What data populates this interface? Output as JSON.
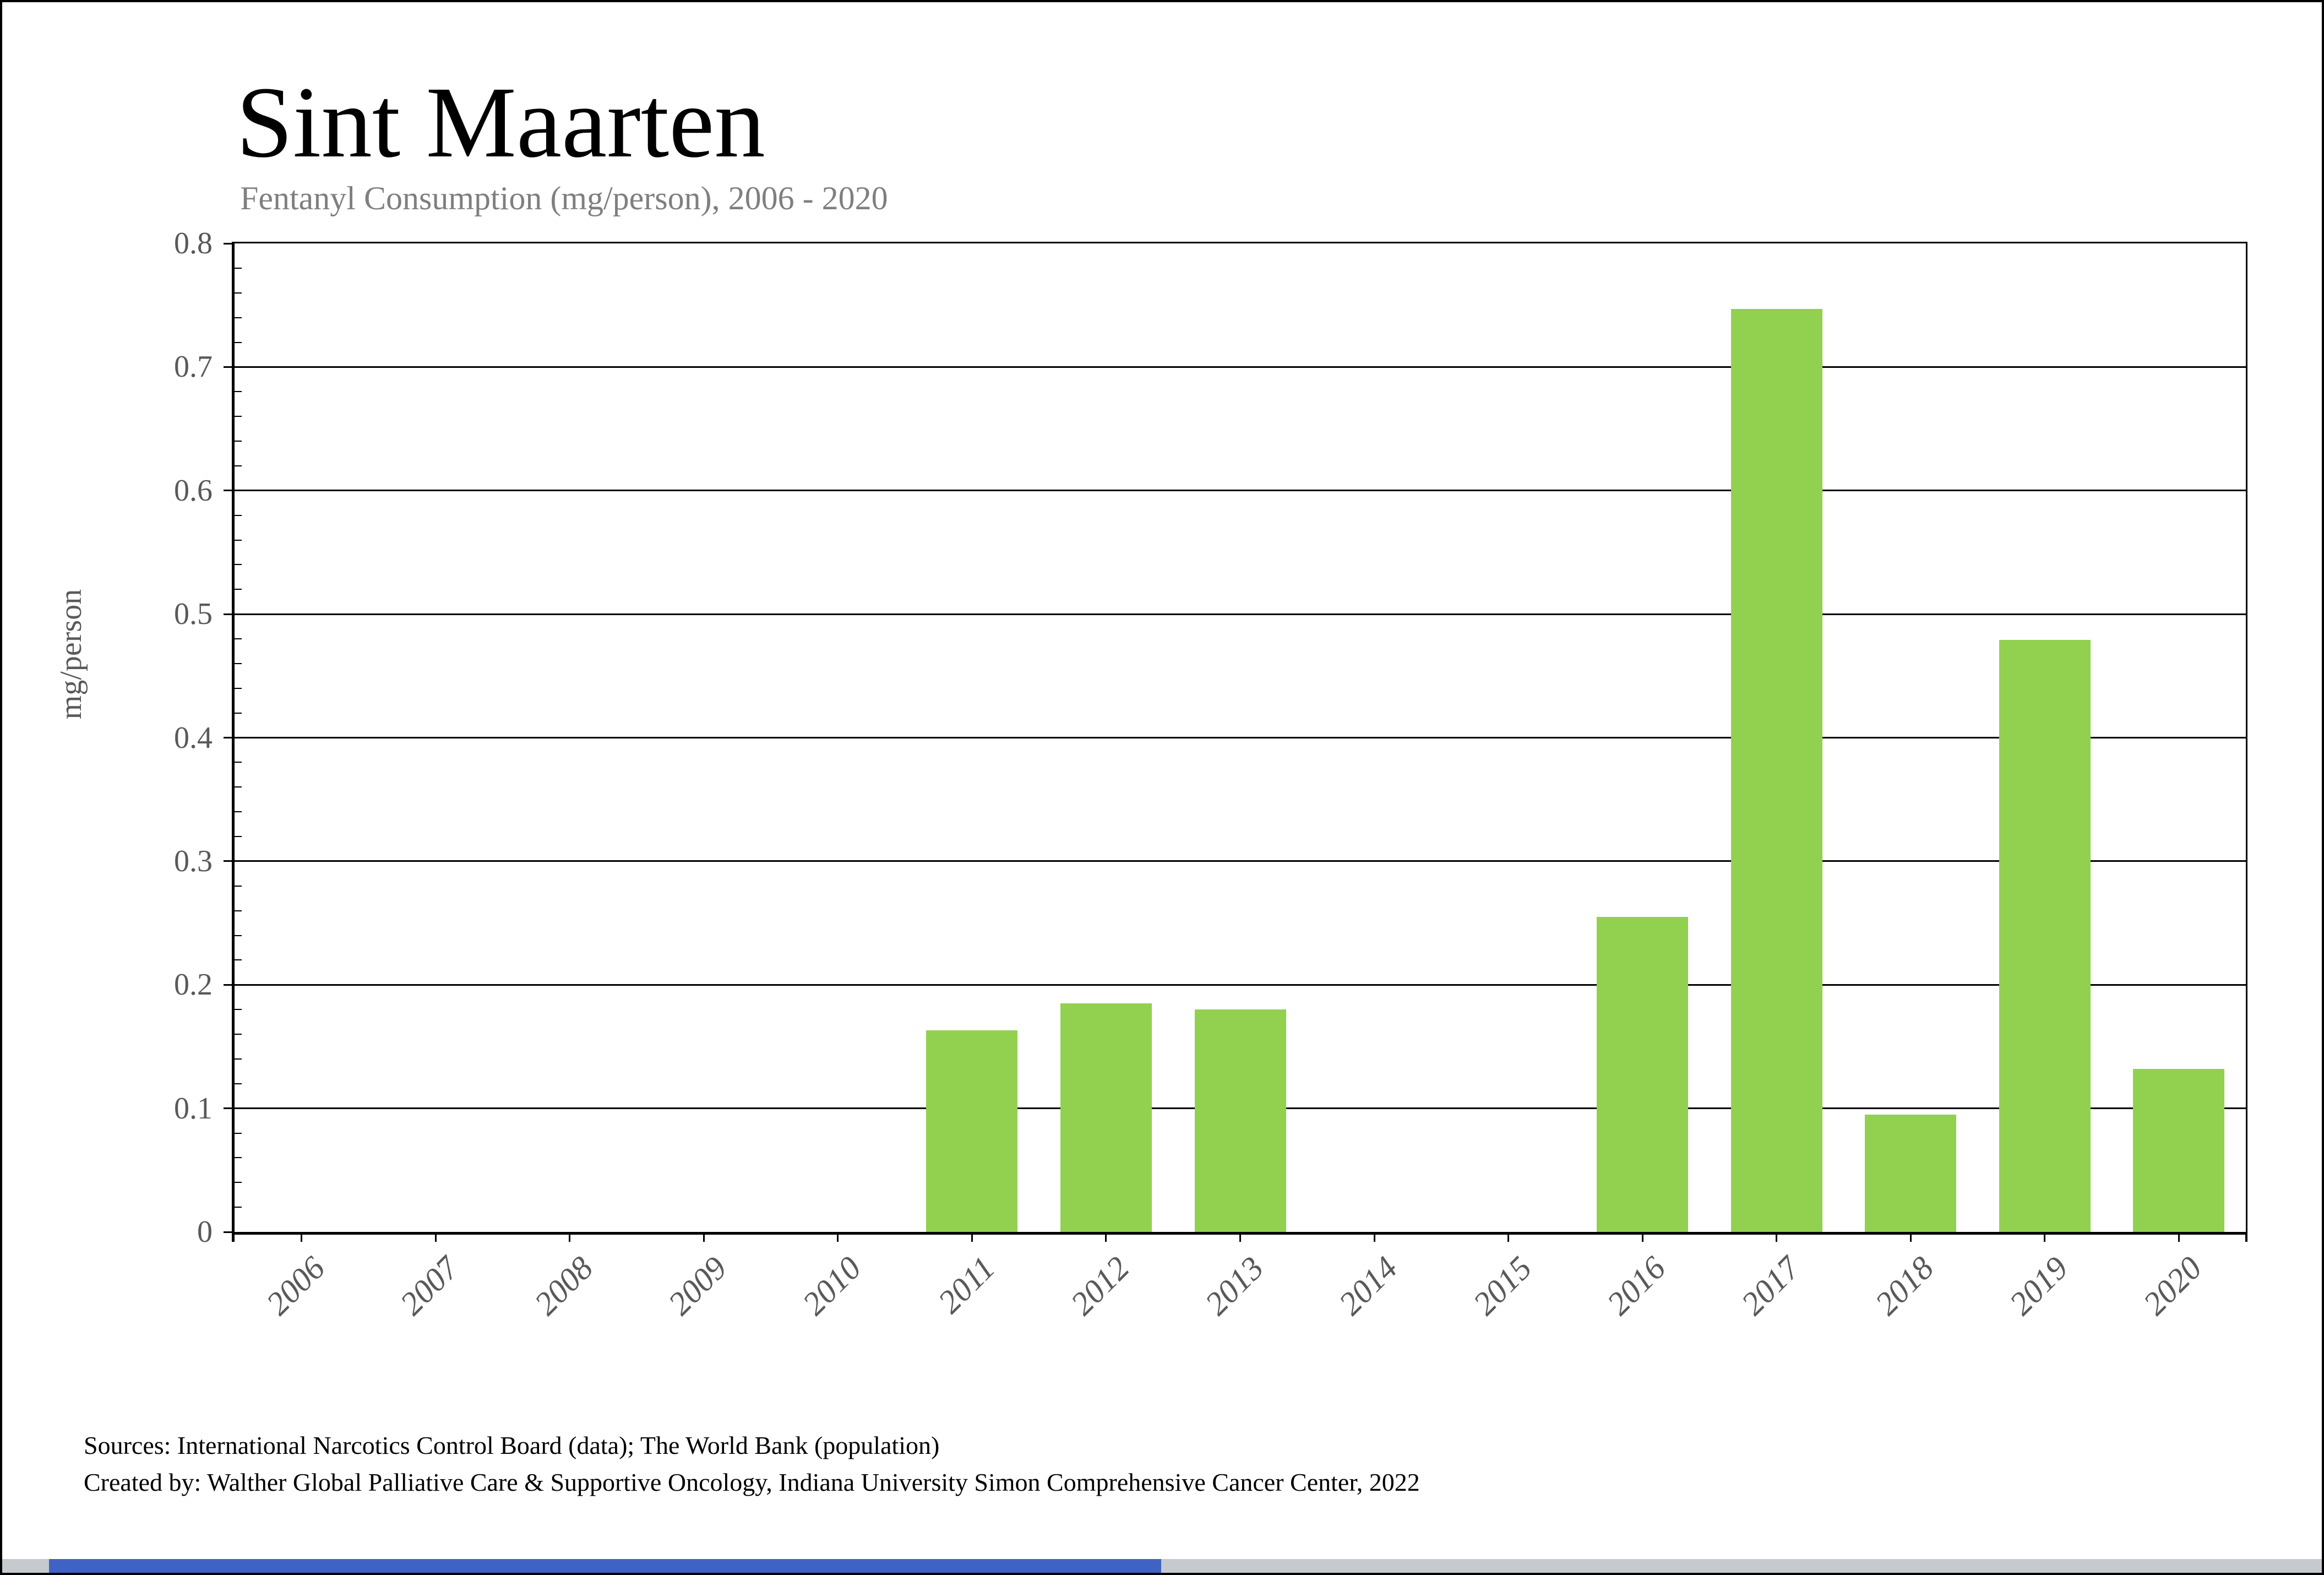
{
  "header": {
    "title": "Sint Maarten",
    "subtitle": "Fentanyl Consumption (mg/person), 2006 - 2020"
  },
  "footer": {
    "sources": "Sources: International Narcotics Control Board (data); The World Bank (population)",
    "credit": "Created by: Walther Global Palliative Care & Supportive Oncology, Indiana University Simon Comprehensive Cancer Center, 2022"
  },
  "chart_data": {
    "type": "bar",
    "title": "Sint Maarten",
    "subtitle": "Fentanyl Consumption (mg/person), 2006 - 2020",
    "ylabel": "mg/person",
    "xlabel": "",
    "categories": [
      "2006",
      "2007",
      "2008",
      "2009",
      "2010",
      "2011",
      "2012",
      "2013",
      "2014",
      "2015",
      "2016",
      "2017",
      "2018",
      "2019",
      "2020"
    ],
    "values": [
      null,
      null,
      null,
      null,
      null,
      0.163,
      0.185,
      0.18,
      null,
      null,
      0.255,
      0.747,
      0.095,
      0.479,
      0.132
    ],
    "ylim": [
      0,
      0.8
    ],
    "ytick_step": 0.1,
    "yminor_step": 0.02,
    "ytick_labels": [
      "0",
      "0.1",
      "0.2",
      "0.3",
      "0.4",
      "0.5",
      "0.6",
      "0.7",
      "0.8"
    ],
    "grid": true,
    "legend_position": "none",
    "bar_color": "#92D050",
    "axis_color": "#000000",
    "tick_label_color": "#595959"
  },
  "window": {
    "bottom_bar_blue": "#3E63C4",
    "bottom_bar_gray": "#C6C9CE"
  }
}
